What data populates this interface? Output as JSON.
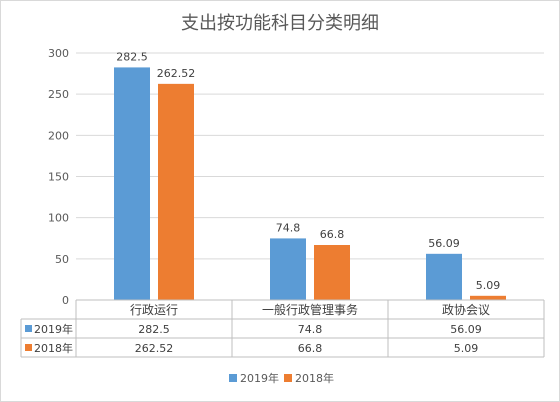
{
  "chart_data": {
    "type": "bar",
    "title": "支出按功能科目分类明细",
    "categories": [
      "行政运行",
      "一般行政管理事务",
      "政协会议"
    ],
    "series": [
      {
        "name": "2019年",
        "values": [
          282.5,
          74.8,
          56.09
        ],
        "labels": [
          "282.5",
          "74.8",
          "56.09"
        ],
        "color": "#5b9bd5"
      },
      {
        "name": "2018年",
        "values": [
          262.52,
          66.8,
          5.09
        ],
        "labels": [
          "262.52",
          "66.8",
          "5.09"
        ],
        "color": "#ed7d31"
      }
    ],
    "ylim": [
      0,
      300
    ],
    "yticks": [
      0,
      50,
      100,
      150,
      200,
      250,
      300
    ],
    "grid": true,
    "legend": "bottom",
    "data_table": true
  }
}
